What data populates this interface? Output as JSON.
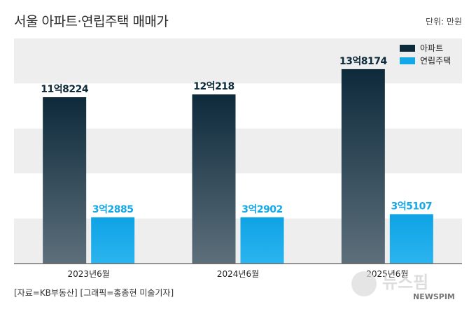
{
  "header": {
    "title": "서울 아파트·연립주택 매매가",
    "unit": "단위: 만원"
  },
  "footer": {
    "source": "[자료=KB부동산] [그래픽=홍종현 미술기자]"
  },
  "watermark": {
    "text": "뉴스핌",
    "sub": "NEWSPIM"
  },
  "chart_data": {
    "type": "bar",
    "categories": [
      "2023년6월",
      "2024년6월",
      "2025년6월"
    ],
    "series": [
      {
        "name": "아파트",
        "values": [
          118224,
          120218,
          138174
        ],
        "labels": [
          "11억8224",
          "12억218",
          "13억8174"
        ],
        "color": "#0d2a3b"
      },
      {
        "name": "연립주택",
        "values": [
          32885,
          32902,
          35107
        ],
        "labels": [
          "3억2885",
          "3억2902",
          "3억5107"
        ],
        "color": "#14a8e6"
      }
    ],
    "ylim": [
      0,
      160000
    ],
    "legend": "top-right",
    "grid": true
  }
}
